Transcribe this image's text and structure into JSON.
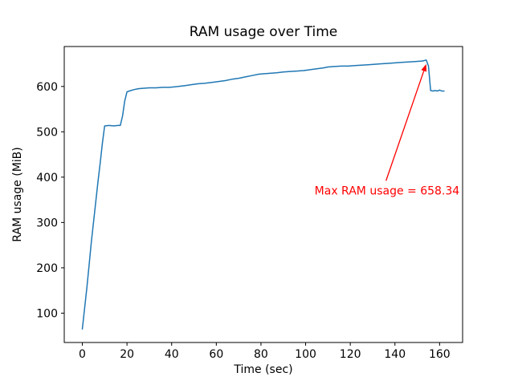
{
  "chart_data": {
    "type": "line",
    "title": "RAM usage over Time",
    "xlabel": "Time (sec)",
    "ylabel": "RAM usage (MiB)",
    "xlim": [
      -8.1,
      170.3
    ],
    "ylim": [
      35.3,
      688.1
    ],
    "x_ticks": [
      0,
      20,
      40,
      60,
      80,
      100,
      120,
      140,
      160
    ],
    "y_ticks": [
      100,
      200,
      300,
      400,
      500,
      600
    ],
    "grid": false,
    "legend_position": "none",
    "series": [
      {
        "name": "RAM usage",
        "color": "#1f77b4",
        "points": [
          [
            0,
            65
          ],
          [
            1,
            110
          ],
          [
            2,
            155
          ],
          [
            3,
            205
          ],
          [
            4,
            255
          ],
          [
            5,
            300
          ],
          [
            6,
            345
          ],
          [
            7,
            390
          ],
          [
            8,
            432
          ],
          [
            9,
            475
          ],
          [
            10,
            513
          ],
          [
            12,
            514
          ],
          [
            14,
            513
          ],
          [
            16,
            514
          ],
          [
            17,
            514
          ],
          [
            18,
            535
          ],
          [
            19,
            568
          ],
          [
            20,
            588
          ],
          [
            21,
            590
          ],
          [
            23,
            593
          ],
          [
            25,
            595
          ],
          [
            27,
            596
          ],
          [
            30,
            597
          ],
          [
            33,
            597
          ],
          [
            36,
            598
          ],
          [
            39,
            598
          ],
          [
            41,
            599
          ],
          [
            43,
            600
          ],
          [
            46,
            602
          ],
          [
            49,
            604
          ],
          [
            52,
            606
          ],
          [
            55,
            607
          ],
          [
            58,
            609
          ],
          [
            61,
            611
          ],
          [
            64,
            613
          ],
          [
            67,
            616
          ],
          [
            70,
            618
          ],
          [
            73,
            621
          ],
          [
            76,
            624
          ],
          [
            79,
            627
          ],
          [
            81,
            628
          ],
          [
            84,
            629
          ],
          [
            87,
            630
          ],
          [
            90,
            632
          ],
          [
            93,
            633
          ],
          [
            96,
            634
          ],
          [
            99,
            635
          ],
          [
            102,
            637
          ],
          [
            105,
            639
          ],
          [
            108,
            641
          ],
          [
            110,
            643
          ],
          [
            113,
            644
          ],
          [
            116,
            645
          ],
          [
            119,
            645
          ],
          [
            122,
            646
          ],
          [
            125,
            647
          ],
          [
            128,
            648
          ],
          [
            131,
            649
          ],
          [
            134,
            650
          ],
          [
            137,
            651
          ],
          [
            140,
            652
          ],
          [
            143,
            653
          ],
          [
            146,
            654
          ],
          [
            149,
            655
          ],
          [
            152,
            656
          ],
          [
            153,
            657
          ],
          [
            154,
            658.34
          ],
          [
            155,
            645
          ],
          [
            156,
            591
          ],
          [
            157,
            590
          ],
          [
            158,
            591
          ],
          [
            159,
            590
          ],
          [
            160,
            592
          ],
          [
            161,
            590
          ],
          [
            162,
            590
          ]
        ]
      }
    ],
    "annotation": {
      "text": "Max RAM usage = 658.34",
      "color": "#ff0000",
      "point": {
        "x": 154,
        "y": 658.34
      },
      "arrow_tail": {
        "x": 136,
        "y": 392
      },
      "text_pos": {
        "x": 104,
        "y": 362
      }
    }
  }
}
